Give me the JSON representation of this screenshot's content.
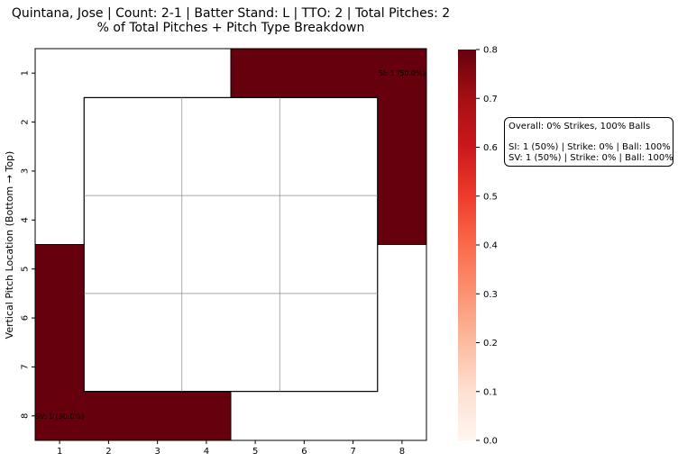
{
  "chart_data": {
    "type": "heatmap",
    "title": "Quintana, Jose | Count: 2-1 | Batter Stand: L | TTO: 2 | Total Pitches: 2",
    "subtitle": "% of Total Pitches + Pitch Type Breakdown",
    "ylabel": "Vertical Pitch Location (Bottom → Top)",
    "xlabel": "",
    "x_ticks": [
      "1",
      "2",
      "3",
      "4",
      "5",
      "6",
      "7",
      "8"
    ],
    "y_ticks": [
      "1",
      "2",
      "3",
      "4",
      "5",
      "6",
      "7",
      "8"
    ],
    "cells": [
      {
        "x_range": [
          4.5,
          8.5
        ],
        "y_range": [
          0.5,
          4.5
        ],
        "value": 0.8
      },
      {
        "x_range": [
          0.5,
          4.5
        ],
        "y_range": [
          4.5,
          8.5
        ],
        "value": 0.8
      }
    ],
    "annotations": [
      {
        "x": 8,
        "y": 1,
        "text": "SI: 1 (50.0%)"
      },
      {
        "x": 1,
        "y": 8,
        "text": "SV: 1 (50.0%)"
      }
    ],
    "strike_zone": {
      "x_range": [
        1.5,
        7.5
      ],
      "y_range": [
        1.5,
        7.5
      ],
      "grid": [
        3,
        3
      ]
    },
    "colorbar": {
      "min": 0.0,
      "max": 0.8,
      "ticks": [
        "0.0",
        "0.1",
        "0.2",
        "0.3",
        "0.4",
        "0.5",
        "0.6",
        "0.7",
        "0.8"
      ],
      "colormap": "Reds",
      "colors": [
        "#fff5f0",
        "#fee0d2",
        "#fcbba1",
        "#fc9272",
        "#fb6a4a",
        "#ef3b2c",
        "#cb181d",
        "#a50f15",
        "#67000d"
      ]
    },
    "summary": {
      "overall": "Overall: 0% Strikes, 100% Balls",
      "lines": [
        "SI: 1 (50%) | Strike: 0% | Ball: 100%",
        "SV: 1 (50%) | Strike: 0% | Ball: 100%"
      ]
    }
  }
}
